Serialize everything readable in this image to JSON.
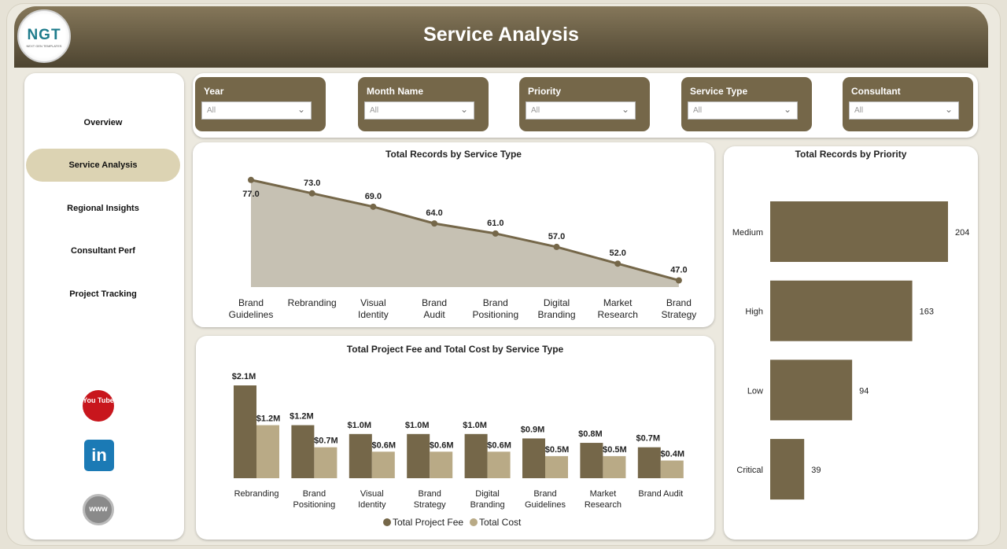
{
  "header": {
    "title": "Service Analysis",
    "logo_text": "NGT",
    "logo_subtext": "NEXT GEN TEMPLATES"
  },
  "sidebar": {
    "items": [
      {
        "label": "Overview"
      },
      {
        "label": "Service Analysis",
        "active": true
      },
      {
        "label": "Regional Insights"
      },
      {
        "label": "Consultant Perf"
      },
      {
        "label": "Project Tracking"
      }
    ],
    "social": [
      {
        "icon": "youtube-icon",
        "label": "You Tube"
      },
      {
        "icon": "linkedin-icon",
        "label": "in"
      },
      {
        "icon": "globe-icon",
        "label": "www"
      }
    ]
  },
  "filters": [
    {
      "label": "Year",
      "value": "All"
    },
    {
      "label": "Month Name",
      "value": "All"
    },
    {
      "label": "Priority",
      "value": "All"
    },
    {
      "label": "Service Type",
      "value": "All"
    },
    {
      "label": "Consultant",
      "value": "All"
    }
  ],
  "colors": {
    "primary": "#756749",
    "secondary": "#b9aa86",
    "area": "#c6c1b3",
    "accent": "#dcd3b3"
  },
  "chart_data": [
    {
      "type": "area",
      "title": "Total Records by Service Type",
      "categories": [
        "Brand Guidelines",
        "Rebranding",
        "Visual Identity",
        "Brand Audit",
        "Brand Positioning",
        "Digital Branding",
        "Market Research",
        "Brand Strategy"
      ],
      "values": [
        77,
        73,
        69,
        64,
        61,
        57,
        52,
        47
      ],
      "data_labels": [
        "77.0",
        "73.0",
        "69.0",
        "64.0",
        "61.0",
        "57.0",
        "52.0",
        "47.0"
      ],
      "ylim": [
        45,
        80
      ]
    },
    {
      "type": "bar",
      "title": "Total Project Fee and Total Cost by Service Type",
      "categories": [
        "Rebranding",
        "Brand Positioning",
        "Visual Identity",
        "Brand Strategy",
        "Digital Branding",
        "Brand Guidelines",
        "Market Research",
        "Brand Audit"
      ],
      "series": [
        {
          "name": "Total Project Fee",
          "values": [
            2.1,
            1.2,
            1.0,
            1.0,
            1.0,
            0.9,
            0.8,
            0.7
          ],
          "labels": [
            "$2.1M",
            "$1.2M",
            "$1.0M",
            "$1.0M",
            "$1.0M",
            "$0.9M",
            "$0.8M",
            "$0.7M"
          ]
        },
        {
          "name": "Total Cost",
          "values": [
            1.2,
            0.7,
            0.6,
            0.6,
            0.6,
            0.5,
            0.5,
            0.4
          ],
          "labels": [
            "$1.2M",
            "$0.7M",
            "$0.6M",
            "$0.6M",
            "$0.6M",
            "$0.5M",
            "$0.5M",
            "$0.4M"
          ]
        }
      ],
      "unit": "$M",
      "legend": "bottom"
    },
    {
      "type": "bar",
      "orientation": "horizontal",
      "title": "Total Records by Priority",
      "categories": [
        "Medium",
        "High",
        "Low",
        "Critical"
      ],
      "values": [
        204,
        163,
        94,
        39
      ]
    }
  ]
}
